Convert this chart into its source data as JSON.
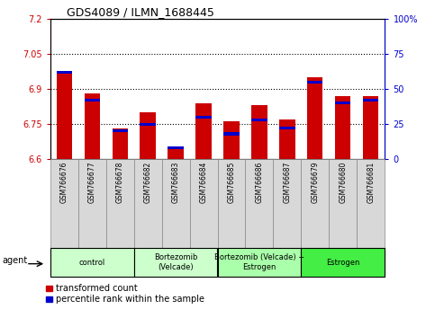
{
  "title": "GDS4089 / ILMN_1688445",
  "samples": [
    "GSM766676",
    "GSM766677",
    "GSM766678",
    "GSM766682",
    "GSM766683",
    "GSM766684",
    "GSM766685",
    "GSM766686",
    "GSM766687",
    "GSM766679",
    "GSM766680",
    "GSM766681"
  ],
  "transformed_counts": [
    6.97,
    6.88,
    6.73,
    6.8,
    6.65,
    6.84,
    6.76,
    6.83,
    6.77,
    6.95,
    6.87,
    6.87
  ],
  "percentile_ranks": [
    62,
    42,
    20,
    25,
    8,
    30,
    18,
    28,
    22,
    55,
    40,
    42
  ],
  "ylim_left": [
    6.6,
    7.2
  ],
  "ylim_right": [
    0,
    100
  ],
  "yticks_left": [
    6.6,
    6.75,
    6.9,
    7.05,
    7.2
  ],
  "yticks_right": [
    0,
    25,
    50,
    75,
    100
  ],
  "ytick_labels_left": [
    "6.6",
    "6.75",
    "6.9",
    "7.05",
    "7.2"
  ],
  "ytick_labels_right": [
    "0",
    "25",
    "50",
    "75",
    "100%"
  ],
  "hlines": [
    6.75,
    6.9,
    7.05
  ],
  "bar_color": "#CC0000",
  "percentile_color": "#0000CC",
  "bar_width": 0.55,
  "group_spans": [
    {
      "start": 0,
      "end": 2,
      "label": "control",
      "color": "#CCFFCC"
    },
    {
      "start": 3,
      "end": 5,
      "label": "Bortezomib\n(Velcade)",
      "color": "#CCFFCC"
    },
    {
      "start": 6,
      "end": 8,
      "label": "Bortezomib (Velcade) +\nEstrogen",
      "color": "#AAFFAA"
    },
    {
      "start": 9,
      "end": 11,
      "label": "Estrogen",
      "color": "#44EE44"
    }
  ],
  "base_value": 6.6,
  "legend_red_label": "transformed count",
  "legend_blue_label": "percentile rank within the sample",
  "right_axis_color": "#0000CC",
  "left_axis_color": "#CC0000",
  "gray_box_color": "#D8D8D8",
  "bg_color": "#FFFFFF"
}
